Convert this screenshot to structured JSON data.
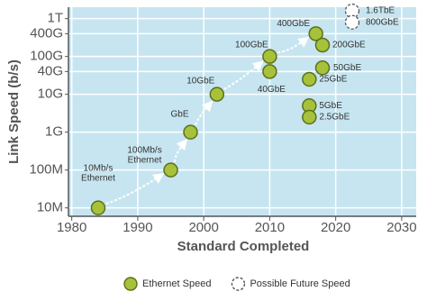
{
  "chart_data": {
    "type": "scatter",
    "xlabel": "Standard Completed",
    "ylabel": "Link Speed (b/s)",
    "log_y": true,
    "grid": true,
    "legend": "bottom",
    "xlim": [
      1979.5,
      2032.2
    ],
    "ylim": [
      6000000,
      2000000000000
    ],
    "xticks": [
      1980,
      1990,
      2000,
      2010,
      2020,
      2030
    ],
    "yticks": [
      {
        "value": 10000000,
        "label": "10M"
      },
      {
        "value": 100000000,
        "label": "100M"
      },
      {
        "value": 1000000000,
        "label": "1G"
      },
      {
        "value": 10000000000,
        "label": "10G"
      },
      {
        "value": 40000000000,
        "label": "40G"
      },
      {
        "value": 100000000000,
        "label": "100G"
      },
      {
        "value": 400000000000,
        "label": "400G"
      },
      {
        "value": 1000000000000,
        "label": "1T"
      }
    ],
    "series": [
      {
        "name": "Ethernet Speed",
        "color": "#a6c23a",
        "x": [
          1984,
          1995,
          1998,
          2002,
          2010,
          2010,
          2017,
          2018,
          2018,
          2016,
          2016,
          2016
        ],
        "values": [
          10000000,
          100000000,
          1000000000,
          10000000000,
          40000000000,
          100000000000,
          400000000000,
          200000000000,
          50000000000,
          25000000000,
          5000000000,
          2500000000
        ],
        "labels": [
          [
            "10Mb/s",
            "Ethernet"
          ],
          [
            "100Mb/s",
            "Ethernet"
          ],
          [
            "GbE"
          ],
          [
            "10GbE"
          ],
          [
            "40GbE"
          ],
          [
            "100GbE"
          ],
          [
            "400GbE"
          ],
          [
            "200GbE"
          ],
          [
            "50GbE"
          ],
          [
            "25GbE"
          ],
          [
            "5GbE"
          ],
          [
            "2.5GbE"
          ]
        ]
      },
      {
        "name": "Possible Future Speed",
        "color": "#ffffff",
        "dashed": true,
        "x": [
          2022.5,
          2022.5
        ],
        "values": [
          1600000000000,
          800000000000
        ],
        "labels": [
          [
            "1.6TbE"
          ],
          [
            "800GbE"
          ]
        ]
      }
    ]
  }
}
